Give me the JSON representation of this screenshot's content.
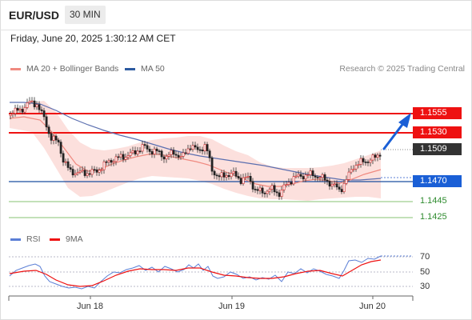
{
  "header": {
    "symbol": "EUR/USD",
    "timeframe": "30 MIN"
  },
  "datetime": "Friday, June 20, 2025 1:30:12 AM CET",
  "legend": [
    {
      "label": "MA 20 + Bollinger Bands",
      "color": "#f08a80"
    },
    {
      "label": "MA 50",
      "color": "#2d5aa0"
    }
  ],
  "copyright": "Research © 2025 Trading Central",
  "price_levels": [
    {
      "value": "1.1555",
      "style": "red-tag",
      "color": "#ee1111"
    },
    {
      "value": "1.1530",
      "style": "red-tag",
      "color": "#ee1111"
    },
    {
      "value": "1.1509",
      "style": "current-price",
      "color": "#333333"
    },
    {
      "value": "1.1470",
      "style": "blue-tag",
      "color": "#1a5fd6"
    },
    {
      "value": "1.1445",
      "style": "green-text",
      "color": "#2e8b2e"
    },
    {
      "value": "1.1425",
      "style": "green-text",
      "color": "#2e8b2e"
    }
  ],
  "rsi_panel": {
    "legend": [
      {
        "label": "RSI",
        "color": "#5b7fd6"
      },
      {
        "label": "9MA",
        "color": "#ee1111"
      }
    ],
    "ticks": [
      "70",
      "50",
      "30"
    ]
  },
  "x_axis": {
    "ticks": [
      "Jun 18",
      "Jun 19",
      "Jun 20"
    ]
  },
  "forecast_arrow": {
    "direction": "up",
    "color": "#1a5fd6"
  }
}
